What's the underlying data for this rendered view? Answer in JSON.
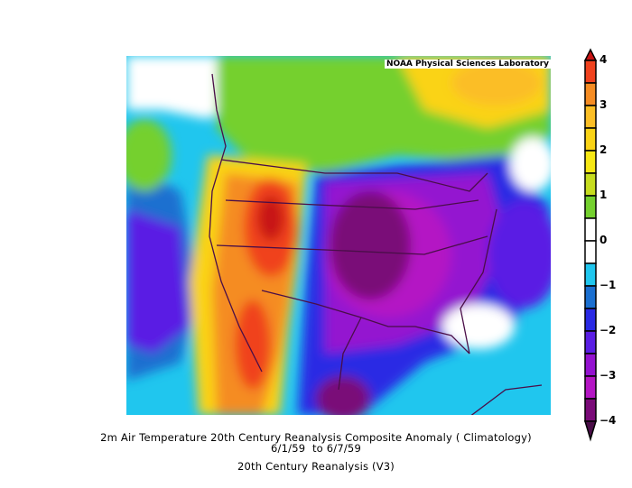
{
  "credit": "NOAA Physical Sciences Laboratory",
  "caption": {
    "title": "2m Air Temperature 20th Century Reanalysis Composite Anomaly ( Climatology)",
    "date_range": "6/1/59  to 6/7/59",
    "dataset": "20th Century Reanalysis (V3)"
  },
  "colorbar": {
    "tick_labels": [
      "4",
      "3",
      "2",
      "1",
      "0",
      "−1",
      "−2",
      "−3",
      "−4"
    ],
    "levels": [
      4,
      3.5,
      3,
      2.5,
      2,
      1.5,
      1,
      0.5,
      0,
      -0.5,
      -1,
      -1.5,
      -2,
      -2.5,
      -3,
      -3.5,
      -4
    ],
    "colors": [
      "#f0421e",
      "#f58c23",
      "#fbbe25",
      "#fad316",
      "#f6e714",
      "#c6dc1f",
      "#74d02e",
      "#ffffff",
      "#ffffff",
      "#20c6ee",
      "#1a6fd0",
      "#2a2ae4",
      "#5a1ee4",
      "#9412d0",
      "#b415c4",
      "#7a0a78"
    ],
    "over_color": "#c81414",
    "under_color": "#4a0e48"
  }
}
